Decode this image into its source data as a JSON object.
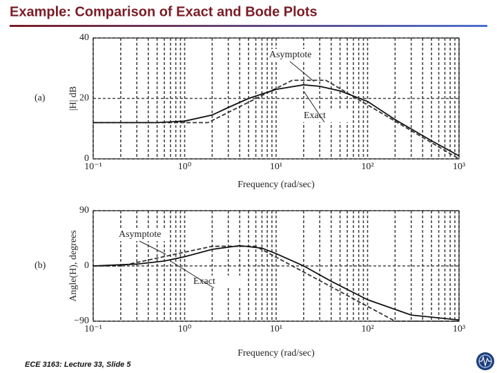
{
  "header": {
    "title": "Example: Comparison of Exact and Bode Plots"
  },
  "footer": "ECE 3163: Lecture 33, Slide 5",
  "chart_data": [
    {
      "type": "line",
      "panel_label": "(a)",
      "ylabel": "|H| dB",
      "xlabel": "Frequency (rad/sec)",
      "log_x": true,
      "grid": true,
      "xlim": [
        0.1,
        1000
      ],
      "xticks": [
        {
          "value": 0.1,
          "label": "10⁻¹"
        },
        {
          "value": 1,
          "label": "10⁰"
        },
        {
          "value": 10,
          "label": "10¹"
        },
        {
          "value": 100,
          "label": "10²"
        },
        {
          "value": 1000,
          "label": "10³"
        }
      ],
      "ylim": [
        0,
        40
      ],
      "yticks": [
        0,
        20,
        40
      ],
      "series": [
        {
          "name": "Asymptote",
          "color": "#333333",
          "dashed": true,
          "x": [
            0.1,
            1.8,
            15,
            35,
            1000
          ],
          "values": [
            12,
            12,
            26,
            26,
            0
          ]
        },
        {
          "name": "Exact",
          "color": "#111111",
          "dashed": false,
          "x": [
            0.1,
            0.5,
            1,
            2,
            3,
            5,
            10,
            20,
            30,
            50,
            100,
            200,
            500,
            1000
          ],
          "values": [
            12,
            12,
            12.5,
            14.5,
            17,
            20,
            23,
            24.5,
            24,
            22.5,
            19,
            13,
            6,
            1
          ]
        }
      ]
    },
    {
      "type": "line",
      "panel_label": "(b)",
      "ylabel": "Angle(H), degrees",
      "xlabel": "Frequency (rad/sec)",
      "log_x": true,
      "grid": true,
      "xlim": [
        0.1,
        1000
      ],
      "xticks": [
        {
          "value": 0.1,
          "label": "10⁻¹"
        },
        {
          "value": 1,
          "label": "10⁰"
        },
        {
          "value": 10,
          "label": "10¹"
        },
        {
          "value": 100,
          "label": "10²"
        },
        {
          "value": 1000,
          "label": "10³"
        }
      ],
      "ylim": [
        -90,
        90
      ],
      "yticks": [
        {
          "value": -90,
          "label": "−90"
        },
        0,
        90
      ],
      "series": [
        {
          "name": "Asymptote",
          "color": "#333333",
          "dashed": true,
          "x": [
            0.1,
            0.2,
            2,
            6,
            200,
            1000
          ],
          "values": [
            0,
            0,
            32,
            32,
            -90,
            -90
          ]
        },
        {
          "name": "Exact",
          "color": "#111111",
          "dashed": false,
          "x": [
            0.1,
            0.3,
            0.6,
            1,
            2,
            4,
            7,
            10,
            20,
            40,
            100,
            300,
            1000
          ],
          "values": [
            0,
            3,
            8,
            15,
            27,
            33,
            29,
            20,
            0,
            -25,
            -55,
            -80,
            -88
          ]
        }
      ]
    }
  ]
}
